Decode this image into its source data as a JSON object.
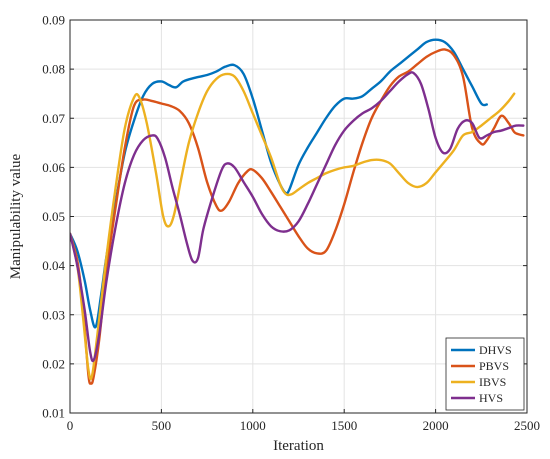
{
  "chart_data": {
    "type": "line",
    "title": "",
    "xlabel": "Iteration",
    "ylabel": "Manipulability value",
    "xlim": [
      0,
      2500
    ],
    "ylim": [
      0.01,
      0.09
    ],
    "xticks": [
      0,
      500,
      1000,
      1500,
      2000,
      2500
    ],
    "yticks": [
      0.01,
      0.02,
      0.03,
      0.04,
      0.05,
      0.06,
      0.07,
      0.08,
      0.09
    ],
    "xtick_labels": [
      "0",
      "500",
      "1000",
      "1500",
      "2000",
      "2500"
    ],
    "ytick_labels": [
      "0.01",
      "0.02",
      "0.03",
      "0.04",
      "0.05",
      "0.06",
      "0.07",
      "0.08",
      "0.09"
    ],
    "grid": true,
    "legend_position": "bottom-right",
    "series": [
      {
        "name": "DHVS",
        "color": "#0072BD",
        "points": [
          [
            0,
            0.0465
          ],
          [
            40,
            0.043
          ],
          [
            80,
            0.037
          ],
          [
            110,
            0.031
          ],
          [
            140,
            0.0275
          ],
          [
            170,
            0.034
          ],
          [
            200,
            0.042
          ],
          [
            250,
            0.053
          ],
          [
            300,
            0.063
          ],
          [
            350,
            0.0695
          ],
          [
            400,
            0.0745
          ],
          [
            450,
            0.077
          ],
          [
            500,
            0.0775
          ],
          [
            540,
            0.0768
          ],
          [
            580,
            0.0763
          ],
          [
            620,
            0.0775
          ],
          [
            680,
            0.0782
          ],
          [
            750,
            0.0788
          ],
          [
            800,
            0.0795
          ],
          [
            850,
            0.0805
          ],
          [
            900,
            0.0808
          ],
          [
            950,
            0.079
          ],
          [
            1000,
            0.074
          ],
          [
            1050,
            0.0675
          ],
          [
            1100,
            0.061
          ],
          [
            1150,
            0.0565
          ],
          [
            1180,
            0.0548
          ],
          [
            1200,
            0.0555
          ],
          [
            1250,
            0.0605
          ],
          [
            1300,
            0.064
          ],
          [
            1350,
            0.067
          ],
          [
            1400,
            0.07
          ],
          [
            1450,
            0.0725
          ],
          [
            1500,
            0.074
          ],
          [
            1550,
            0.074
          ],
          [
            1600,
            0.0745
          ],
          [
            1650,
            0.076
          ],
          [
            1700,
            0.0775
          ],
          [
            1750,
            0.0795
          ],
          [
            1800,
            0.081
          ],
          [
            1850,
            0.0825
          ],
          [
            1900,
            0.084
          ],
          [
            1950,
            0.0855
          ],
          [
            2000,
            0.086
          ],
          [
            2050,
            0.0855
          ],
          [
            2100,
            0.0835
          ],
          [
            2150,
            0.08
          ],
          [
            2200,
            0.0765
          ],
          [
            2250,
            0.073
          ],
          [
            2280,
            0.0728
          ]
        ]
      },
      {
        "name": "PBVS",
        "color": "#D95319",
        "points": [
          [
            0,
            0.0465
          ],
          [
            40,
            0.041
          ],
          [
            70,
            0.032
          ],
          [
            100,
            0.018
          ],
          [
            115,
            0.016
          ],
          [
            130,
            0.0175
          ],
          [
            160,
            0.025
          ],
          [
            200,
            0.039
          ],
          [
            250,
            0.052
          ],
          [
            300,
            0.064
          ],
          [
            350,
            0.0725
          ],
          [
            400,
            0.0738
          ],
          [
            450,
            0.0735
          ],
          [
            500,
            0.073
          ],
          [
            550,
            0.0725
          ],
          [
            600,
            0.0715
          ],
          [
            650,
            0.069
          ],
          [
            700,
            0.064
          ],
          [
            750,
            0.057
          ],
          [
            800,
            0.0522
          ],
          [
            830,
            0.0512
          ],
          [
            870,
            0.053
          ],
          [
            920,
            0.0568
          ],
          [
            970,
            0.0592
          ],
          [
            1000,
            0.0595
          ],
          [
            1050,
            0.0578
          ],
          [
            1100,
            0.055
          ],
          [
            1150,
            0.052
          ],
          [
            1200,
            0.049
          ],
          [
            1250,
            0.046
          ],
          [
            1300,
            0.0435
          ],
          [
            1350,
            0.0425
          ],
          [
            1400,
            0.043
          ],
          [
            1450,
            0.047
          ],
          [
            1500,
            0.0525
          ],
          [
            1550,
            0.059
          ],
          [
            1600,
            0.065
          ],
          [
            1650,
            0.07
          ],
          [
            1700,
            0.0735
          ],
          [
            1750,
            0.0765
          ],
          [
            1800,
            0.0785
          ],
          [
            1850,
            0.0795
          ],
          [
            1900,
            0.081
          ],
          [
            1950,
            0.0825
          ],
          [
            2000,
            0.0835
          ],
          [
            2050,
            0.084
          ],
          [
            2100,
            0.0828
          ],
          [
            2150,
            0.0785
          ],
          [
            2200,
            0.068
          ],
          [
            2250,
            0.0648
          ],
          [
            2280,
            0.0655
          ],
          [
            2320,
            0.068
          ],
          [
            2360,
            0.0705
          ],
          [
            2400,
            0.069
          ],
          [
            2430,
            0.0672
          ],
          [
            2450,
            0.0668
          ],
          [
            2480,
            0.0665
          ]
        ]
      },
      {
        "name": "IBVS",
        "color": "#EDB120",
        "points": [
          [
            0,
            0.0465
          ],
          [
            40,
            0.04
          ],
          [
            70,
            0.03
          ],
          [
            100,
            0.019
          ],
          [
            120,
            0.0175
          ],
          [
            150,
            0.026
          ],
          [
            200,
            0.042
          ],
          [
            250,
            0.056
          ],
          [
            300,
            0.068
          ],
          [
            350,
            0.0742
          ],
          [
            380,
            0.0742
          ],
          [
            420,
            0.069
          ],
          [
            470,
            0.059
          ],
          [
            510,
            0.05
          ],
          [
            540,
            0.048
          ],
          [
            570,
            0.0505
          ],
          [
            610,
            0.058
          ],
          [
            650,
            0.065
          ],
          [
            700,
            0.071
          ],
          [
            750,
            0.0755
          ],
          [
            800,
            0.078
          ],
          [
            850,
            0.079
          ],
          [
            900,
            0.0785
          ],
          [
            950,
            0.0755
          ],
          [
            1000,
            0.071
          ],
          [
            1050,
            0.0665
          ],
          [
            1100,
            0.062
          ],
          [
            1150,
            0.0565
          ],
          [
            1180,
            0.0546
          ],
          [
            1210,
            0.0545
          ],
          [
            1250,
            0.0555
          ],
          [
            1300,
            0.0568
          ],
          [
            1350,
            0.0578
          ],
          [
            1400,
            0.0588
          ],
          [
            1450,
            0.0595
          ],
          [
            1500,
            0.06
          ],
          [
            1550,
            0.0603
          ],
          [
            1600,
            0.061
          ],
          [
            1650,
            0.0615
          ],
          [
            1700,
            0.0615
          ],
          [
            1750,
            0.0608
          ],
          [
            1800,
            0.0588
          ],
          [
            1850,
            0.0568
          ],
          [
            1900,
            0.056
          ],
          [
            1950,
            0.0568
          ],
          [
            2000,
            0.059
          ],
          [
            2050,
            0.0612
          ],
          [
            2100,
            0.0635
          ],
          [
            2150,
            0.0665
          ],
          [
            2200,
            0.0672
          ],
          [
            2250,
            0.0685
          ],
          [
            2300,
            0.07
          ],
          [
            2350,
            0.0715
          ],
          [
            2400,
            0.0735
          ],
          [
            2430,
            0.075
          ]
        ]
      },
      {
        "name": "HVS",
        "color": "#7E2F8E",
        "points": [
          [
            0,
            0.0465
          ],
          [
            40,
            0.04
          ],
          [
            80,
            0.031
          ],
          [
            110,
            0.0225
          ],
          [
            130,
            0.0208
          ],
          [
            160,
            0.026
          ],
          [
            200,
            0.037
          ],
          [
            250,
            0.048
          ],
          [
            300,
            0.0568
          ],
          [
            350,
            0.0625
          ],
          [
            400,
            0.0655
          ],
          [
            450,
            0.0665
          ],
          [
            480,
            0.0658
          ],
          [
            520,
            0.062
          ],
          [
            560,
            0.056
          ],
          [
            600,
            0.0505
          ],
          [
            640,
            0.0445
          ],
          [
            670,
            0.041
          ],
          [
            700,
            0.0415
          ],
          [
            730,
            0.0475
          ],
          [
            780,
            0.054
          ],
          [
            830,
            0.0595
          ],
          [
            860,
            0.0608
          ],
          [
            900,
            0.06
          ],
          [
            950,
            0.057
          ],
          [
            1000,
            0.054
          ],
          [
            1050,
            0.0505
          ],
          [
            1100,
            0.048
          ],
          [
            1150,
            0.047
          ],
          [
            1200,
            0.0472
          ],
          [
            1250,
            0.049
          ],
          [
            1300,
            0.0525
          ],
          [
            1350,
            0.0565
          ],
          [
            1400,
            0.0605
          ],
          [
            1450,
            0.0645
          ],
          [
            1500,
            0.0675
          ],
          [
            1550,
            0.0695
          ],
          [
            1600,
            0.071
          ],
          [
            1650,
            0.072
          ],
          [
            1700,
            0.0735
          ],
          [
            1750,
            0.0755
          ],
          [
            1800,
            0.0775
          ],
          [
            1850,
            0.079
          ],
          [
            1880,
            0.0792
          ],
          [
            1920,
            0.077
          ],
          [
            1960,
            0.072
          ],
          [
            2000,
            0.066
          ],
          [
            2040,
            0.063
          ],
          [
            2080,
            0.0638
          ],
          [
            2120,
            0.0678
          ],
          [
            2160,
            0.0695
          ],
          [
            2200,
            0.069
          ],
          [
            2240,
            0.066
          ],
          [
            2280,
            0.0665
          ],
          [
            2320,
            0.0672
          ],
          [
            2360,
            0.0675
          ],
          [
            2400,
            0.068
          ],
          [
            2440,
            0.0685
          ],
          [
            2480,
            0.0685
          ]
        ]
      }
    ]
  }
}
